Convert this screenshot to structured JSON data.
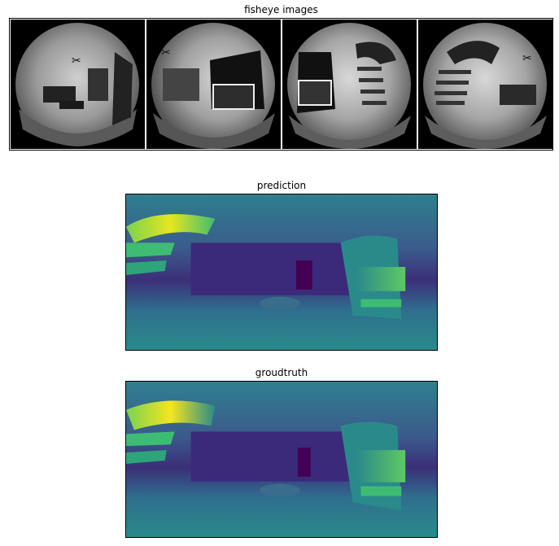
{
  "fisheye": {
    "title": "fisheye images",
    "images": [
      {
        "name": "fisheye-image-1"
      },
      {
        "name": "fisheye-image-2"
      },
      {
        "name": "fisheye-image-3"
      },
      {
        "name": "fisheye-image-4"
      }
    ]
  },
  "prediction": {
    "title": "prediction"
  },
  "groundtruth": {
    "title": "groudtruth"
  },
  "colors": {
    "viridis_dark": "#440154",
    "viridis_deep": "#3b2a7a",
    "viridis_mid": "#3b5b8c",
    "viridis_teal": "#2a8a8a",
    "viridis_green": "#3fbc73",
    "viridis_yellow": "#e6e620"
  }
}
